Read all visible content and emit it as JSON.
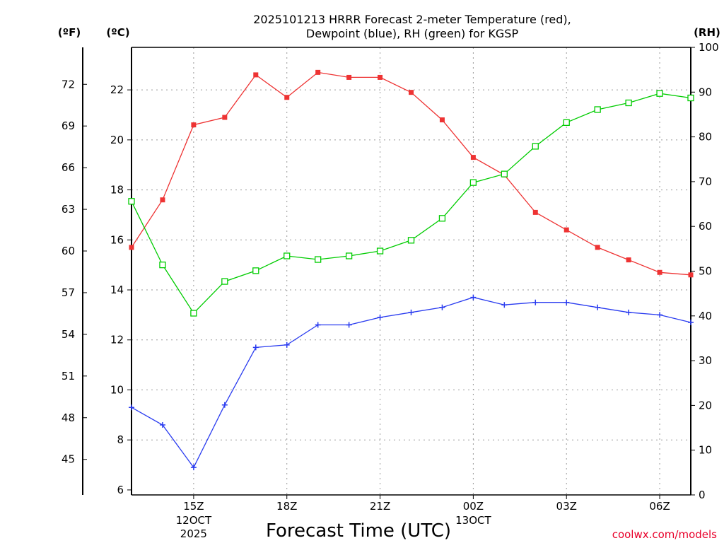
{
  "chart_data": {
    "type": "line",
    "title_line1": "2025101213 HRRR Forecast 2-meter Temperature (red),",
    "title_line2": "Dewpoint (blue), RH (green) for KGSP",
    "xlabel": "Forecast Time (UTC)",
    "watermark": "coolwx.com/models",
    "unit_left_f": "(ºF)",
    "unit_left_c": "(ºC)",
    "unit_right_rh": "(RH)",
    "x": [
      13,
      14,
      15,
      16,
      17,
      18,
      19,
      20,
      21,
      22,
      23,
      24,
      25,
      26,
      27,
      28,
      29,
      30,
      31
    ],
    "xlim": [
      13,
      31
    ],
    "x_ticks": [
      {
        "x": 15,
        "label": "15Z",
        "sub1": "12OCT",
        "sub2": "2025"
      },
      {
        "x": 18,
        "label": "18Z",
        "sub1": "",
        "sub2": ""
      },
      {
        "x": 21,
        "label": "21Z",
        "sub1": "",
        "sub2": ""
      },
      {
        "x": 24,
        "label": "00Z",
        "sub1": "13OCT",
        "sub2": ""
      },
      {
        "x": 27,
        "label": "03Z",
        "sub1": "",
        "sub2": ""
      },
      {
        "x": 30,
        "label": "06Z",
        "sub1": "",
        "sub2": ""
      }
    ],
    "ylim_c": [
      5.8,
      23.7
    ],
    "y_ticks_c": [
      6,
      8,
      10,
      12,
      14,
      16,
      18,
      20,
      22
    ],
    "y_ticks_f": [
      45,
      48,
      51,
      54,
      57,
      60,
      63,
      66,
      69,
      72
    ],
    "ylim_rh": [
      0,
      100
    ],
    "y_ticks_rh": [
      0,
      10,
      20,
      30,
      40,
      50,
      60,
      70,
      80,
      90,
      100
    ],
    "series": [
      {
        "name": "Temperature",
        "axis": "c",
        "color": "#ee3333",
        "marker": "filled-square",
        "values": [
          15.7,
          17.6,
          20.6,
          20.9,
          22.6,
          21.7,
          22.7,
          22.5,
          22.5,
          21.9,
          20.8,
          19.3,
          18.6,
          17.1,
          16.4,
          15.7,
          15.2,
          14.7,
          14.6
        ]
      },
      {
        "name": "Dewpoint",
        "axis": "c",
        "color": "#2a3cf0",
        "marker": "plus",
        "values": [
          9.3,
          8.6,
          6.9,
          9.4,
          11.7,
          11.8,
          12.6,
          12.6,
          12.9,
          13.1,
          13.3,
          13.7,
          13.4,
          13.5,
          13.5,
          13.3,
          13.1,
          13.0,
          12.7
        ]
      },
      {
        "name": "RH",
        "axis": "rh",
        "color": "#00cc00",
        "marker": "open-square",
        "values": [
          65.6,
          51.4,
          40.6,
          47.7,
          50.1,
          53.4,
          52.6,
          53.4,
          54.5,
          56.9,
          61.8,
          69.8,
          71.7,
          77.9,
          83.2,
          86.1,
          87.6,
          89.7,
          88.7
        ]
      }
    ]
  }
}
